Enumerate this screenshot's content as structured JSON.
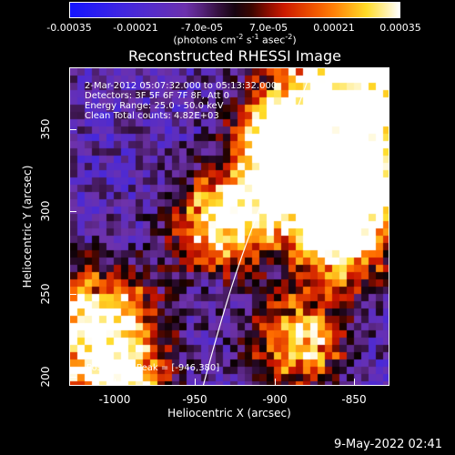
{
  "colorbar": {
    "labels": [
      "-0.00035",
      "-0.00021",
      "-7.0e-05",
      "7.0e-05",
      "0.00021",
      "0.00035"
    ],
    "units_prefix": "(photons cm",
    "units_sup1": "-2",
    "units_mid": " s",
    "units_sup2": "-1",
    "units_mid2": " asec",
    "units_sup3": "-2",
    "units_suffix": ")",
    "colormap": "blue-purple-red-yellow-white"
  },
  "title": "Reconstructed RHESSI Image",
  "annotations": {
    "line1": "2-Mar-2012 05:07:32.000 to 05:13:32.000",
    "line2": "Detectors: 3F 5F 6F 7F 8F, Att 0",
    "line3": "Energy Range: 25.0 - 50.0 keV",
    "line4": "Clean     Total counts: 4.82E+03",
    "peak": "Position of Peak = [-946,380]"
  },
  "axes": {
    "xlabel": "Heliocentric X (arcsec)",
    "ylabel": "Heliocentric Y (arcsec)",
    "xticks": [
      "-1000",
      "-950",
      "-900",
      "-850"
    ],
    "yticks": [
      "350",
      "300",
      "250",
      "200"
    ],
    "x_range": [
      -1030,
      -830
    ],
    "y_range": [
      195,
      395
    ]
  },
  "timestamp": "9-May-2022 02:41"
}
